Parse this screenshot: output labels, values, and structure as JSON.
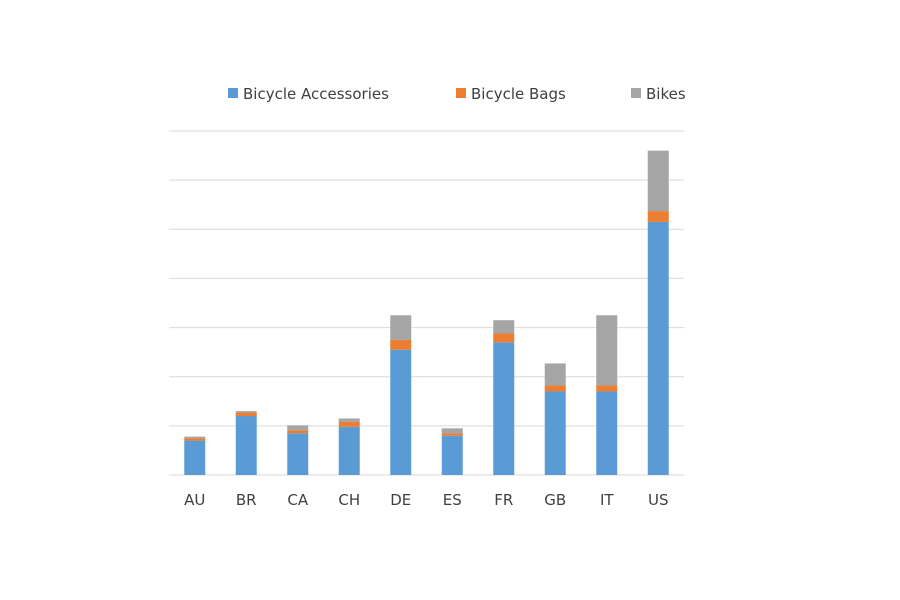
{
  "chart_data": {
    "type": "bar",
    "stacked": true,
    "categories": [
      "AU",
      "BR",
      "CA",
      "CH",
      "DE",
      "ES",
      "FR",
      "GB",
      "IT",
      "US"
    ],
    "series": [
      {
        "name": "Bicycle Accessories",
        "color": "#5b9bd5",
        "values": [
          0.7,
          1.2,
          0.85,
          0.98,
          2.55,
          0.8,
          2.7,
          1.7,
          1.7,
          5.15
        ]
      },
      {
        "name": "Bicycle Bags",
        "color": "#ed7d31",
        "values": [
          0.05,
          0.07,
          0.06,
          0.1,
          0.2,
          0.05,
          0.18,
          0.12,
          0.12,
          0.22
        ]
      },
      {
        "name": "Bikes",
        "color": "#a5a5a5",
        "values": [
          0.03,
          0.03,
          0.1,
          0.07,
          0.5,
          0.1,
          0.27,
          0.45,
          1.43,
          1.23
        ]
      }
    ],
    "ylim": [
      0,
      7
    ],
    "y_gridlines": 7,
    "y_tick_labels_shown": false,
    "grid": true,
    "legend_position": "top"
  }
}
